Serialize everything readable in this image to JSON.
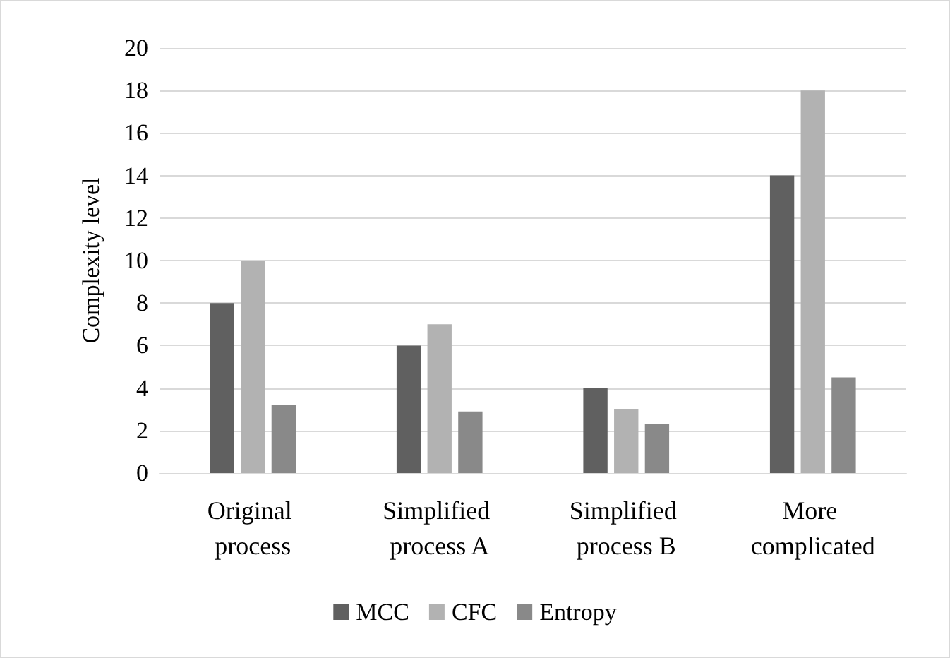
{
  "chart_data": {
    "type": "bar",
    "ylabel": "Complexity level",
    "categories": [
      "Original process",
      "Simplified process A",
      "Simplified process B",
      "More complicated"
    ],
    "series": [
      {
        "name": "MCC",
        "color": "#606060",
        "values": [
          8,
          6,
          4,
          14
        ]
      },
      {
        "name": "CFC",
        "color": "#b2b2b2",
        "values": [
          10,
          7,
          3,
          18
        ]
      },
      {
        "name": "Entropy",
        "color": "#898989",
        "values": [
          3.2,
          2.9,
          2.3,
          4.5
        ]
      }
    ],
    "ylim": [
      0,
      20
    ],
    "yticks": [
      0,
      2,
      4,
      6,
      8,
      10,
      12,
      14,
      16,
      18,
      20
    ],
    "grid": "y",
    "legend": "bottom"
  }
}
